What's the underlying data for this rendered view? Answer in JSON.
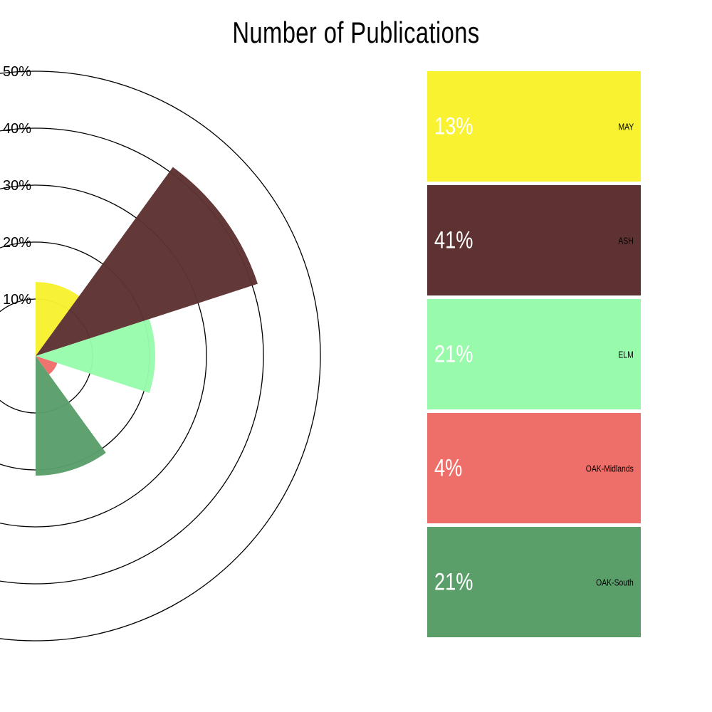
{
  "chart_data": {
    "type": "polar-area",
    "title": "Number of Publications",
    "radial_ticks": [
      "10%",
      "20%",
      "30%",
      "40%",
      "50%"
    ],
    "radial_max": 50,
    "categories": [
      "MAY",
      "ASH",
      "ELM",
      "OAK-Midlands",
      "OAK-South"
    ],
    "values": [
      13,
      41,
      21,
      4,
      21
    ],
    "labels": [
      "13%",
      "41%",
      "21%",
      "4%",
      "21%"
    ],
    "colors": [
      "#f8f231",
      "#5e3232",
      "#98fbac",
      "#ee6f6a",
      "#5a9f6a"
    ],
    "legend_placement": "right"
  }
}
